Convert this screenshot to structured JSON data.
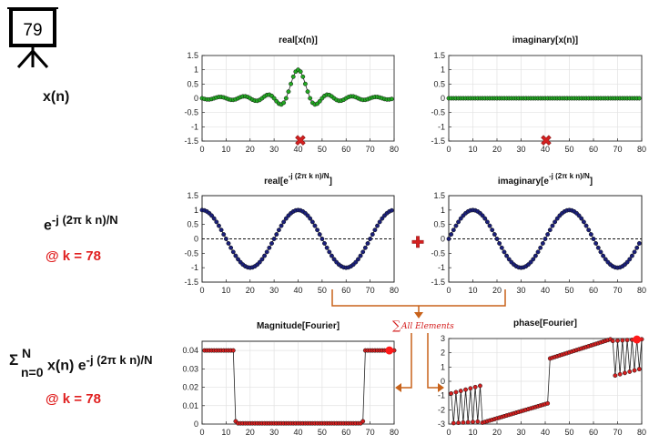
{
  "slide_number": "79",
  "left_labels": {
    "xn": "x(n)",
    "kernel_base": "e",
    "kernel_exp": "-j (2π k n)/N",
    "at_k": "@ k = 78",
    "sum_symbol": "Σ",
    "sum_top": "N",
    "sum_bottom": "n=0",
    "sum_body": "x(n) e",
    "sum_exp": "-j (2π k n)/N",
    "at_k2": "@ k = 78"
  },
  "operators": {
    "multiply": "✖",
    "plus": "✚",
    "sum_label": "All Elements",
    "sum_sign": "∑"
  },
  "colors": {
    "green_marker": "#22a822",
    "blue_marker": "#1a1f7a",
    "red_marker": "#d42020",
    "arrow": "#c8621a",
    "axis": "#222222"
  },
  "chart_data": [
    {
      "id": "real_x",
      "type": "scatter",
      "title": "real[x(n)]",
      "x_range": [
        0,
        80
      ],
      "ylim": [
        -1.5,
        1.5
      ],
      "xticks": [
        "0",
        "10",
        "20",
        "30",
        "40",
        "50",
        "60",
        "70",
        "80"
      ],
      "yticks": [
        "1.5",
        "1",
        "0.5",
        "0",
        "-0.5",
        "-1",
        "-1.5"
      ],
      "grid": true,
      "zero_line": false,
      "connected": true,
      "marker_color": "#22a822",
      "formula": "sinc",
      "center": 40,
      "period": 5,
      "n_points": 80,
      "x_start": 0
    },
    {
      "id": "imag_x",
      "type": "scatter",
      "title": "imaginary[x(n)]",
      "x_range": [
        0,
        80
      ],
      "ylim": [
        -1.5,
        1.5
      ],
      "xticks": [
        "0",
        "10",
        "20",
        "30",
        "40",
        "50",
        "60",
        "70",
        "80"
      ],
      "yticks": [
        "1.5",
        "1",
        "0.5",
        "0",
        "-0.5",
        "-1",
        "-1.5"
      ],
      "grid": true,
      "zero_line": false,
      "connected": true,
      "marker_color": "#22a822",
      "formula": "zero",
      "n_points": 80,
      "x_start": 0
    },
    {
      "id": "real_kernel",
      "type": "scatter",
      "title_main": "real[e",
      "title_sup": "-j (2π k n)/N",
      "title_end": "]",
      "x_range": [
        0,
        80
      ],
      "ylim": [
        -1.5,
        1.5
      ],
      "xticks": [
        "0",
        "10",
        "20",
        "30",
        "40",
        "50",
        "60",
        "70",
        "80"
      ],
      "yticks": [
        "1.5",
        "1",
        "0.5",
        "0",
        "-0.5",
        "-1",
        "-1.5"
      ],
      "grid": false,
      "zero_line": true,
      "connected": true,
      "marker_color": "#1a1f7a",
      "formula": "cos",
      "k": 78,
      "N": 80,
      "n_points": 80,
      "x_start": 0
    },
    {
      "id": "imag_kernel",
      "type": "scatter",
      "title_main": "imaginary[e",
      "title_sup": "-j (2π k n)/N",
      "title_end": "]",
      "x_range": [
        0,
        80
      ],
      "ylim": [
        -1.5,
        1.5
      ],
      "xticks": [
        "0",
        "10",
        "20",
        "30",
        "40",
        "50",
        "60",
        "70",
        "80"
      ],
      "yticks": [
        "1.5",
        "1",
        "0.5",
        "0",
        "-0.5",
        "-1",
        "-1.5"
      ],
      "grid": false,
      "zero_line": true,
      "connected": true,
      "marker_color": "#1a1f7a",
      "formula": "negsin",
      "k": 78,
      "N": 80,
      "n_points": 80,
      "x_start": 0
    },
    {
      "id": "magnitude",
      "type": "scatter",
      "title": "Magnitude[Fourier]",
      "x_range": [
        0,
        80
      ],
      "ylim": [
        0,
        0.045
      ],
      "xticks": [
        "0",
        "10",
        "20",
        "30",
        "40",
        "50",
        "60",
        "70",
        "80"
      ],
      "yticks": [
        "0.04",
        "0.03",
        "0.02",
        "0.01",
        "0"
      ],
      "ytick_values": [
        0.04,
        0.03,
        0.02,
        0.01,
        0
      ],
      "grid": true,
      "zero_line": false,
      "connected": true,
      "marker_color": "#d42020",
      "formula": "rect_mag",
      "n_points": 80,
      "x_start": 1,
      "pass_low": 13,
      "pass_high": 68,
      "height": 0.04,
      "highlight_index": 78
    },
    {
      "id": "phase",
      "type": "scatter",
      "title": "phase[Fourier]",
      "x_range": [
        0,
        80
      ],
      "ylim": [
        -3,
        3
      ],
      "xticks": [
        "0",
        "10",
        "20",
        "30",
        "40",
        "50",
        "60",
        "70",
        "80"
      ],
      "yticks": [
        "3",
        "2",
        "1",
        "0",
        "-1",
        "-2",
        "-3"
      ],
      "ytick_values": [
        3,
        2,
        1,
        0,
        -1,
        -2,
        -3
      ],
      "grid": true,
      "zero_line": false,
      "connected": true,
      "marker_color": "#d42020",
      "formula": "phase",
      "n_points": 80,
      "x_start": 1,
      "pass_low": 13,
      "pass_high": 68,
      "highlight_index": 78
    }
  ]
}
